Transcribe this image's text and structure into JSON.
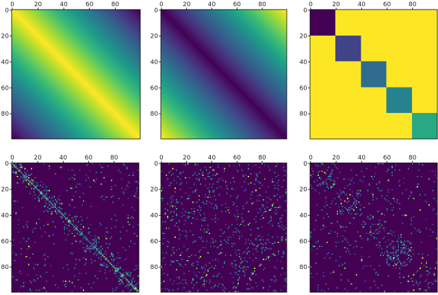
{
  "chart_data": [
    {
      "type": "heatmap",
      "panel": "top-left",
      "pattern": "similarity-band",
      "size": 100,
      "xlim": [
        0,
        99
      ],
      "ylim": [
        99,
        0
      ],
      "xticks": [
        0,
        20,
        40,
        60,
        80
      ],
      "yticks": [
        0,
        20,
        40,
        60,
        80
      ],
      "x_tick_position": "top",
      "colormap": "viridis",
      "value_range": [
        0,
        1
      ],
      "description_values": "value = 1 - |i - j| / 99"
    },
    {
      "type": "heatmap",
      "panel": "top-middle",
      "pattern": "distance-band",
      "size": 100,
      "xlim": [
        0,
        99
      ],
      "ylim": [
        99,
        0
      ],
      "xticks": [
        0,
        20,
        40,
        60,
        80
      ],
      "yticks": [
        0,
        20,
        40,
        60,
        80
      ],
      "x_tick_position": "top",
      "colormap": "viridis",
      "value_range": [
        0,
        1
      ],
      "description_values": "value = |i - j| / 99"
    },
    {
      "type": "heatmap",
      "panel": "top-right",
      "pattern": "block-diagonal",
      "size": 100,
      "xlim": [
        0,
        99
      ],
      "ylim": [
        99,
        0
      ],
      "xticks": [
        0,
        20,
        40,
        60,
        80
      ],
      "yticks": [
        0,
        20,
        40,
        60,
        80
      ],
      "x_tick_position": "top",
      "colormap": "viridis",
      "background_value": 1.0,
      "blocks": [
        {
          "start": 0,
          "end": 20,
          "value": 0.0
        },
        {
          "start": 20,
          "end": 40,
          "value": 0.2
        },
        {
          "start": 40,
          "end": 60,
          "value": 0.35
        },
        {
          "start": 60,
          "end": 80,
          "value": 0.45
        },
        {
          "start": 80,
          "end": 100,
          "value": 0.6
        }
      ]
    },
    {
      "type": "heatmap",
      "panel": "bottom-left",
      "pattern": "sparse-diagonal-band",
      "size": 100,
      "xlim": [
        0,
        99
      ],
      "ylim": [
        99,
        0
      ],
      "xticks": [
        0,
        20,
        40,
        60,
        80
      ],
      "yticks": [
        0,
        20,
        40,
        60,
        80
      ],
      "x_tick_position": "top",
      "colormap": "viridis",
      "band_width": 12,
      "band_density": 0.32,
      "background_density": 0.035
    },
    {
      "type": "heatmap",
      "panel": "bottom-middle",
      "pattern": "sparse-uniform",
      "size": 100,
      "xlim": [
        0,
        99
      ],
      "ylim": [
        99,
        0
      ],
      "xticks": [
        0,
        20,
        40,
        60,
        80
      ],
      "yticks": [
        0,
        20,
        40,
        60,
        80
      ],
      "x_tick_position": "top",
      "colormap": "viridis",
      "background_density": 0.085
    },
    {
      "type": "heatmap",
      "panel": "bottom-right",
      "pattern": "sparse-blocks",
      "size": 100,
      "xlim": [
        0,
        99
      ],
      "ylim": [
        99,
        0
      ],
      "xticks": [
        0,
        20,
        40,
        60,
        80
      ],
      "yticks": [
        0,
        20,
        40,
        60,
        80
      ],
      "x_tick_position": "top",
      "colormap": "viridis",
      "background_density": 0.045,
      "dense_blocks": [
        {
          "start": 0,
          "end": 20,
          "density": 0.14
        },
        {
          "start": 20,
          "end": 40,
          "density": 0.2
        },
        {
          "start": 40,
          "end": 60,
          "density": 0.14
        },
        {
          "start": 60,
          "end": 80,
          "density": 0.28
        },
        {
          "start": 80,
          "end": 100,
          "density": 0.16
        }
      ]
    }
  ]
}
